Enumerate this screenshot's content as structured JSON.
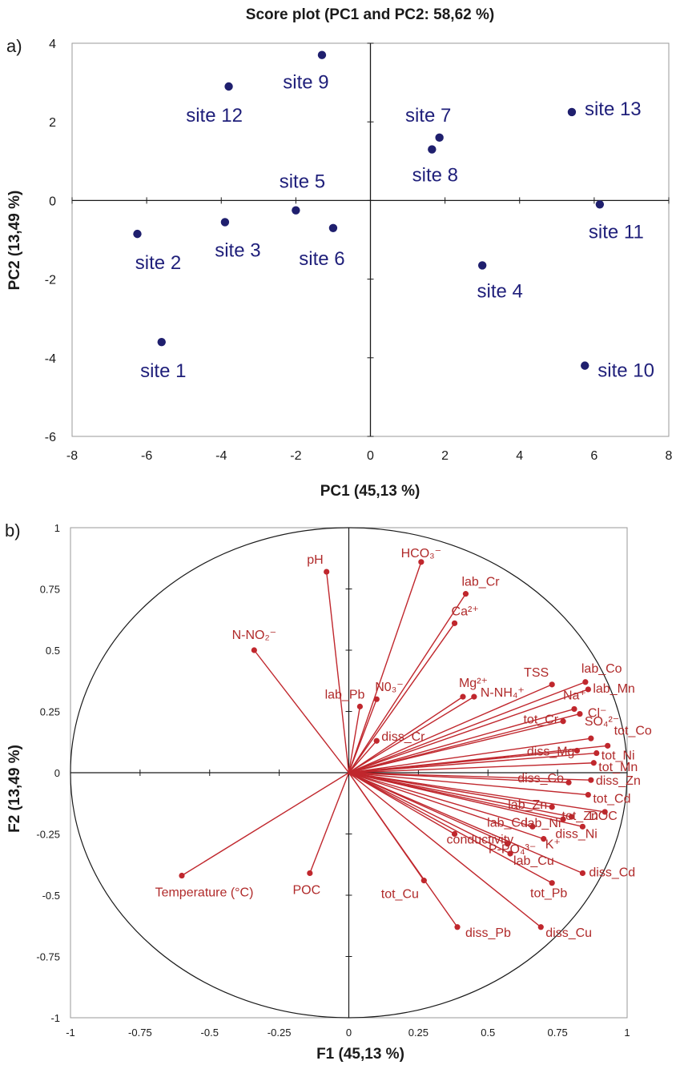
{
  "chart_data": [
    {
      "type": "scatter",
      "panel_label": "a)",
      "title": "Score plot (PC1 and PC2: 58,62 %)",
      "xlabel": "PC1 (45,13 %)",
      "ylabel": "PC2 (13,49 %)",
      "xlim": [
        -8,
        8
      ],
      "ylim": [
        -6,
        4
      ],
      "xticks": [
        "-8",
        "-6",
        "-4",
        "-2",
        "0",
        "2",
        "4",
        "6",
        "8"
      ],
      "yticks": [
        "4",
        "2",
        "0",
        "-2",
        "-4",
        "-6"
      ],
      "marker_color": "#1f1f6e",
      "label_color": "#23238c",
      "points": [
        {
          "label": "site 1",
          "x": -5.6,
          "y": -3.6
        },
        {
          "label": "site 2",
          "x": -6.25,
          "y": -0.85
        },
        {
          "label": "site 3",
          "x": -3.9,
          "y": -0.55
        },
        {
          "label": "site 4",
          "x": 3.0,
          "y": -1.65
        },
        {
          "label": "site 5",
          "x": -2.0,
          "y": -0.25
        },
        {
          "label": "site 6",
          "x": -1.0,
          "y": -0.7
        },
        {
          "label": "site 7",
          "x": 1.85,
          "y": 1.6
        },
        {
          "label": "site 8",
          "x": 1.65,
          "y": 1.3
        },
        {
          "label": "site 9",
          "x": -1.3,
          "y": 3.7
        },
        {
          "label": "site 10",
          "x": 5.75,
          "y": -4.2
        },
        {
          "label": "site 11",
          "x": 6.15,
          "y": -0.1
        },
        {
          "label": "site 12",
          "x": -3.8,
          "y": 2.9
        },
        {
          "label": "site 13",
          "x": 5.4,
          "y": 2.25
        }
      ]
    },
    {
      "type": "scatter",
      "subtype": "correlation-circle",
      "panel_label": "b)",
      "xlabel": "F1 (45,13 %)",
      "ylabel": "F2 (13,49 %)",
      "xlim": [
        -1,
        1
      ],
      "ylim": [
        -1,
        1
      ],
      "xticks": [
        "-1",
        "-0.75",
        "-0.5",
        "-0.25",
        "0",
        "0.25",
        "0.5",
        "0.75",
        "1"
      ],
      "yticks": [
        "1",
        "0.75",
        "0.5",
        "0.25",
        "0",
        "-0.25",
        "-0.5",
        "-0.75",
        "-1"
      ],
      "vector_color": "#c0272d",
      "label_color": "#b02a2a",
      "variables": [
        {
          "label": "pH",
          "x": -0.08,
          "y": 0.82
        },
        {
          "label": "HCO₃⁻",
          "x": 0.26,
          "y": 0.86
        },
        {
          "label": "lab_Cr",
          "x": 0.42,
          "y": 0.73
        },
        {
          "label": "Ca²⁺",
          "x": 0.38,
          "y": 0.61
        },
        {
          "label": "N-NO₂⁻",
          "x": -0.34,
          "y": 0.5
        },
        {
          "label": "Mg²⁺",
          "x": 0.41,
          "y": 0.31
        },
        {
          "label": "N-NH₄⁺",
          "x": 0.45,
          "y": 0.31
        },
        {
          "label": "TSS",
          "x": 0.73,
          "y": 0.36
        },
        {
          "label": "lab_Co",
          "x": 0.85,
          "y": 0.37
        },
        {
          "label": "lab_Mn",
          "x": 0.86,
          "y": 0.34
        },
        {
          "label": "Na⁺",
          "x": 0.81,
          "y": 0.26
        },
        {
          "label": "lab_Pb",
          "x": 0.04,
          "y": 0.27
        },
        {
          "label": "N0₃⁻",
          "x": 0.1,
          "y": 0.3
        },
        {
          "label": "Cl⁻",
          "x": 0.83,
          "y": 0.24
        },
        {
          "label": "SO₄²⁻",
          "x": 0.87,
          "y": 0.14
        },
        {
          "label": "tot_Cr",
          "x": 0.77,
          "y": 0.21
        },
        {
          "label": "tot_Co",
          "x": 0.93,
          "y": 0.11
        },
        {
          "label": "tot_Ni",
          "x": 0.89,
          "y": 0.08
        },
        {
          "label": "diss_Mg",
          "x": 0.82,
          "y": 0.09
        },
        {
          "label": "tot_Mn",
          "x": 0.88,
          "y": 0.04
        },
        {
          "label": "diss_Cr",
          "x": 0.1,
          "y": 0.13
        },
        {
          "label": "diss_Co",
          "x": 0.79,
          "y": -0.04
        },
        {
          "label": "diss_Zn",
          "x": 0.87,
          "y": -0.03
        },
        {
          "label": "tot_Cd",
          "x": 0.86,
          "y": -0.09
        },
        {
          "label": "lab_Zn",
          "x": 0.73,
          "y": -0.14
        },
        {
          "label": "tot_Zn",
          "x": 0.8,
          "y": -0.18
        },
        {
          "label": "DOC",
          "x": 0.92,
          "y": -0.16
        },
        {
          "label": "lab_Cd",
          "x": 0.66,
          "y": -0.22
        },
        {
          "label": "lab_Ni",
          "x": 0.77,
          "y": -0.19
        },
        {
          "label": "diss_Ni",
          "x": 0.84,
          "y": -0.22
        },
        {
          "label": "P-PO₄³⁻",
          "x": 0.57,
          "y": -0.29
        },
        {
          "label": "K⁺",
          "x": 0.7,
          "y": -0.27
        },
        {
          "label": "conductivity",
          "x": 0.38,
          "y": -0.25
        },
        {
          "label": "lab_Cu",
          "x": 0.58,
          "y": -0.33
        },
        {
          "label": "diss_Cd",
          "x": 0.84,
          "y": -0.41
        },
        {
          "label": "tot_Pb",
          "x": 0.73,
          "y": -0.45
        },
        {
          "label": "Temperature (°C)",
          "x": -0.6,
          "y": -0.42
        },
        {
          "label": "POC",
          "x": -0.14,
          "y": -0.41
        },
        {
          "label": "tot_Cu",
          "x": 0.27,
          "y": -0.44
        },
        {
          "label": "diss_Pb",
          "x": 0.39,
          "y": -0.63
        },
        {
          "label": "diss_Cu",
          "x": 0.69,
          "y": -0.63
        }
      ]
    }
  ]
}
